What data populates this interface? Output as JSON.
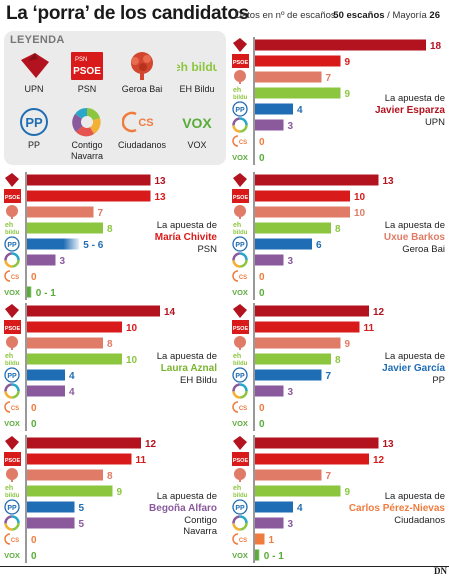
{
  "header": {
    "title": "La ‘porra’ de los candidatos",
    "subtitle": "Datos en nº de escaños",
    "majority_seats": "50 escaños",
    "majority_label": "Mayoría",
    "majority_value": "26"
  },
  "legend": {
    "title": "LEYENDA",
    "items": [
      {
        "key": "upn",
        "label": "UPN",
        "icon": "upn-logo-icon",
        "color": "#b3121f"
      },
      {
        "key": "psn",
        "label": "PSN",
        "icon": "psoe-logo-icon",
        "color": "#d91a1a",
        "logo_text_top": "PSN",
        "logo_text": "PSOE"
      },
      {
        "key": "geroa",
        "label": "Geroa Bai",
        "icon": "geroa-bai-logo-icon",
        "color": "#e07b67"
      },
      {
        "key": "ehbildu",
        "label": "EH Bildu",
        "icon": "eh-bildu-logo-icon",
        "color": "#8cc63f",
        "logo_text": "eh bildu"
      },
      {
        "key": "pp",
        "label": "PP",
        "icon": "pp-logo-icon",
        "color": "#1f6db4",
        "logo_text": "PP"
      },
      {
        "key": "contigo",
        "label": "Contigo Navarra",
        "icon": "contigo-navarra-logo-icon",
        "color": "#8a5a9c"
      },
      {
        "key": "cs",
        "label": "Ciudadanos",
        "icon": "ciudadanos-logo-icon",
        "color": "#f07b3f",
        "logo_text": "CS"
      },
      {
        "key": "vox",
        "label": "VOX",
        "icon": "vox-logo-icon",
        "color": "#5aac3a",
        "logo_text": "VOX"
      }
    ]
  },
  "chart_data": [
    {
      "type": "bar",
      "id": "esparza",
      "intro": "La apuesta de",
      "name": "Javier Esparza",
      "party": "UPN",
      "name_color": "#b3121f",
      "categories": [
        "UPN",
        "PSN",
        "Geroa Bai",
        "EH Bildu",
        "PP",
        "Contigo Navarra",
        "Ciudadanos",
        "VOX"
      ],
      "values": [
        18,
        9,
        7,
        9,
        4,
        3,
        0,
        0
      ],
      "labels": [
        "18",
        "9",
        "7",
        "9",
        "4",
        "3",
        "0",
        "0"
      ]
    },
    {
      "type": "bar",
      "id": "chivite",
      "intro": "La apuesta de",
      "name": "María Chivite",
      "party": "PSN",
      "name_color": "#d91a1a",
      "categories": [
        "UPN",
        "PSN",
        "Geroa Bai",
        "EH Bildu",
        "PP",
        "Contigo Navarra",
        "Ciudadanos",
        "VOX"
      ],
      "values": [
        13,
        13,
        7,
        8,
        5.5,
        3,
        0,
        0.5
      ],
      "labels": [
        "13",
        "13",
        "7",
        "8",
        "5 - 6",
        "3",
        "0",
        "0 - 1"
      ]
    },
    {
      "type": "bar",
      "id": "barkos",
      "intro": "La apuesta de",
      "name": "Uxue Barkos",
      "party": "Geroa Bai",
      "name_color": "#e07b67",
      "categories": [
        "UPN",
        "PSN",
        "Geroa Bai",
        "EH Bildu",
        "PP",
        "Contigo Navarra",
        "Ciudadanos",
        "VOX"
      ],
      "values": [
        13,
        10,
        10,
        8,
        6,
        3,
        0,
        0
      ],
      "labels": [
        "13",
        "10",
        "10",
        "8",
        "6",
        "3",
        "0",
        "0"
      ]
    },
    {
      "type": "bar",
      "id": "aznal",
      "intro": "La apuesta de",
      "name": "Laura Aznal",
      "party": "EH Bildu",
      "name_color": "#7ab531",
      "categories": [
        "UPN",
        "PSN",
        "Geroa Bai",
        "EH Bildu",
        "PP",
        "Contigo Navarra",
        "Ciudadanos",
        "VOX"
      ],
      "values": [
        14,
        10,
        8,
        10,
        4,
        4,
        0,
        0
      ],
      "labels": [
        "14",
        "10",
        "8",
        "10",
        "4",
        "4",
        "0",
        "0"
      ]
    },
    {
      "type": "bar",
      "id": "garcia",
      "intro": "La apuesta de",
      "name": "Javier García",
      "party": "PP",
      "name_color": "#1f6db4",
      "categories": [
        "UPN",
        "PSN",
        "Geroa Bai",
        "EH Bildu",
        "PP",
        "Contigo Navarra",
        "Ciudadanos",
        "VOX"
      ],
      "values": [
        12,
        11,
        9,
        8,
        7,
        3,
        0,
        0
      ],
      "labels": [
        "12",
        "11",
        "9",
        "8",
        "7",
        "3",
        "0",
        "0"
      ]
    },
    {
      "type": "bar",
      "id": "alfaro",
      "intro": "La apuesta de",
      "name": "Begoña Alfaro",
      "party": "Contigo Navarra",
      "name_color": "#8a5a9c",
      "categories": [
        "UPN",
        "PSN",
        "Geroa Bai",
        "EH Bildu",
        "PP",
        "Contigo Navarra",
        "Ciudadanos",
        "VOX"
      ],
      "values": [
        12,
        11,
        8,
        9,
        5,
        5,
        0,
        0
      ],
      "labels": [
        "12",
        "11",
        "8",
        "9",
        "5",
        "5",
        "0",
        "0"
      ]
    },
    {
      "type": "bar",
      "id": "perez-nievas",
      "intro": "La apuesta de",
      "name": "Carlos Pérez-Nievas",
      "party": "Ciudadanos",
      "name_color": "#f07b3f",
      "categories": [
        "UPN",
        "PSN",
        "Geroa Bai",
        "EH Bildu",
        "PP",
        "Contigo Navarra",
        "Ciudadanos",
        "VOX"
      ],
      "values": [
        13,
        12,
        7,
        9,
        4,
        3,
        1,
        0.5
      ],
      "labels": [
        "13",
        "12",
        "7",
        "9",
        "4",
        "3",
        "1",
        "0 - 1"
      ]
    }
  ],
  "footer": {
    "logo": "DN"
  }
}
